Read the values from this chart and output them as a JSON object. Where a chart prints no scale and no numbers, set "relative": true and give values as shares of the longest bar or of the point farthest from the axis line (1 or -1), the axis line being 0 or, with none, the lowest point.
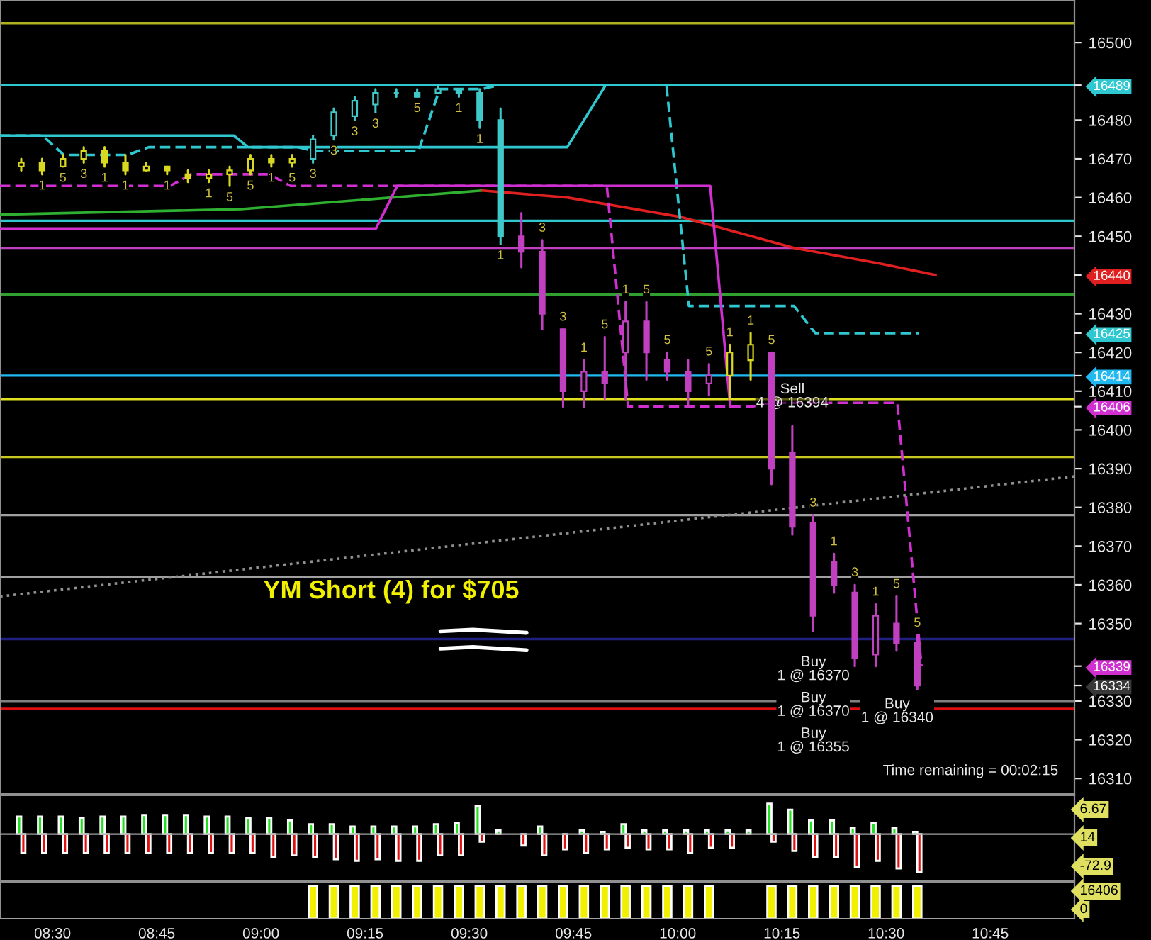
{
  "chart_data": [
    {
      "type": "candlestick",
      "tick_labels": "y",
      "x": [
        8.425,
        8.475,
        8.525,
        8.575,
        8.625,
        8.675,
        8.725,
        8.775,
        8.825,
        8.875,
        8.925,
        8.975,
        9.025,
        9.075,
        9.125,
        9.175,
        9.225,
        9.275,
        9.325,
        9.375,
        9.425,
        9.475,
        9.525,
        9.575,
        9.625,
        9.675,
        9.725,
        9.775,
        9.825,
        9.875,
        9.925,
        9.975,
        10.025,
        10.075,
        10.125,
        10.175,
        10.225,
        10.275,
        10.325,
        10.375,
        10.425,
        10.475,
        10.525,
        10.575
      ],
      "ohlc": [
        [
          16468,
          16470,
          16467,
          16469
        ],
        [
          16469,
          16470,
          16466,
          16467
        ],
        [
          16468,
          16471,
          16468,
          16470
        ],
        [
          16470,
          16473,
          16469,
          16472
        ],
        [
          16472,
          16473,
          16468,
          16469
        ],
        [
          16469,
          16471,
          16466,
          16467
        ],
        [
          16467,
          16469,
          16467,
          16468
        ],
        [
          16468,
          16468,
          16466,
          16467
        ],
        [
          16466,
          16467,
          16464,
          16465
        ],
        [
          16465,
          16467,
          16464,
          16466
        ],
        [
          16466,
          16468,
          16463,
          16467
        ],
        [
          16467,
          16471,
          16466,
          16470
        ],
        [
          16470,
          16471,
          16468,
          16469
        ],
        [
          16469,
          16471,
          16468,
          16470
        ],
        [
          16470,
          16476,
          16469,
          16475
        ],
        [
          16476,
          16483,
          16475,
          16482
        ],
        [
          16481,
          16486,
          16480,
          16485
        ],
        [
          16484,
          16488,
          16482,
          16487
        ],
        [
          16487,
          16488,
          16486,
          16487
        ],
        [
          16487,
          16488,
          16486,
          16486
        ],
        [
          16487,
          16489,
          16487,
          16488
        ],
        [
          16488,
          16488,
          16486,
          16487
        ],
        [
          16487,
          16488,
          16478,
          16480
        ],
        [
          16480,
          16483,
          16448,
          16450
        ],
        [
          16450,
          16456,
          16442,
          16446
        ],
        [
          16446,
          16449,
          16426,
          16430
        ],
        [
          16426,
          16426,
          16406,
          16410
        ],
        [
          16410,
          16418,
          16406,
          16415
        ],
        [
          16415,
          16424,
          16408,
          16412
        ],
        [
          16420,
          16433,
          16408,
          16428
        ],
        [
          16428,
          16433,
          16413,
          16420
        ],
        [
          16418,
          16420,
          16413,
          16415
        ],
        [
          16415,
          16418,
          16406,
          16410
        ],
        [
          16412,
          16417,
          16409,
          16414
        ],
        [
          16414,
          16422,
          16408,
          16420
        ],
        [
          16418,
          16425,
          16413,
          16422
        ],
        [
          16420,
          16420,
          16386,
          16390
        ],
        [
          16394,
          16401,
          16373,
          16375
        ],
        [
          16376,
          16378,
          16348,
          16352
        ],
        [
          16366,
          16368,
          16358,
          16360
        ],
        [
          16358,
          16360,
          16339,
          16341
        ],
        [
          16342,
          16355,
          16339,
          16352
        ],
        [
          16350,
          16357,
          16343,
          16345
        ],
        [
          16345,
          16347,
          16333,
          16334
        ]
      ],
      "colors": [
        "#d8d820",
        "#d8d820",
        "#d8d820",
        "#d8d820",
        "#d8d820",
        "#d8d820",
        "#d8d820",
        "#d8d820",
        "#d8d820",
        "#d8d820",
        "#d8d820",
        "#d8d820",
        "#d8d820",
        "#d8d820",
        "#40c8c8",
        "#40c8c8",
        "#40c8c8",
        "#40c8c8",
        "#40c8c8",
        "#40c8c8",
        "#40c8c8",
        "#40c8c8",
        "#40c8c8",
        "#40c8c8",
        "#c040c0",
        "#c040c0",
        "#c040c0",
        "#c040c0",
        "#c040c0",
        "#c040c0",
        "#c040c0",
        "#c040c0",
        "#c040c0",
        "#c040c0",
        "#d8d820",
        "#d8d820",
        "#c040c0",
        "#c040c0",
        "#c040c0",
        "#c040c0",
        "#c040c0",
        "#c040c0",
        "#c040c0",
        "#c040c0"
      ],
      "series": [
        {
          "type": "line",
          "color": "#30b030",
          "line_style": "solid",
          "x": [
            8.374,
            8.953,
            9.531
          ],
          "values": [
            16455.6,
            16457,
            16461.8
          ]
        },
        {
          "type": "line",
          "color": "#e02020",
          "line_style": "solid",
          "x": [
            9.531,
            9.735,
            10.007,
            10.279,
            10.483,
            10.619
          ],
          "values": [
            16461.8,
            16460,
            16455,
            16447,
            16443,
            16440
          ]
        },
        {
          "type": "line",
          "color": "#30c8d0",
          "line_style": "dashed",
          "x": [
            8.374,
            8.476,
            8.527,
            8.68,
            8.731,
            9.088,
            9.129,
            9.378,
            9.429,
            9.531,
            9.571,
            9.973,
            10.027,
            10.279,
            10.33,
            10.578
          ],
          "values": [
            16476,
            16476,
            16471,
            16471,
            16473,
            16473,
            16472,
            16472,
            16488,
            16488,
            16489,
            16489,
            16432,
            16432,
            16425,
            16425
          ]
        },
        {
          "type": "line",
          "color": "#30c8d0",
          "line_style": "solid",
          "x": [
            8.374,
            8.935,
            8.969,
            9.735,
            9.827,
            10.578
          ],
          "values": [
            16476,
            16476,
            16473,
            16473,
            16489,
            16489
          ]
        },
        {
          "type": "line",
          "color": "#d030d0",
          "line_style": "dashed",
          "x": [
            8.374,
            8.782,
            8.833,
            9.02,
            9.071,
            9.83,
            9.881,
            10.177,
            10.228,
            10.527,
            10.585
          ],
          "values": [
            16463,
            16463,
            16466,
            16466,
            16463,
            16463,
            16406,
            16406,
            16407,
            16407,
            16339
          ]
        },
        {
          "type": "line",
          "color": "#d030d0",
          "line_style": "solid",
          "x": [
            8.374,
            9.276,
            9.327,
            10.078,
            10.126
          ],
          "values": [
            16452,
            16452,
            16463,
            16463,
            16406
          ]
        },
        {
          "type": "line",
          "color": "#909090",
          "line_style": "dotted",
          "x": [
            8.374,
            10.952
          ],
          "values": [
            16357,
            16388
          ]
        }
      ],
      "xlim": [
        8.374,
        10.952
      ],
      "ylim": [
        16306,
        16511
      ],
      "yticks": [
        16310,
        16320,
        16330,
        16350,
        16360,
        16370,
        16380,
        16390,
        16400,
        16410,
        16420,
        16430,
        16450,
        16460,
        16470,
        16480,
        16500
      ],
      "y2lim": [
        16306,
        16511
      ],
      "y2ticks": [
        {
          "value": 16489,
          "label": "16489"
        },
        {
          "value": 16440,
          "label": "16440"
        },
        {
          "value": 16425,
          "label": "16425"
        },
        {
          "value": 16414,
          "label": "16414"
        },
        {
          "value": 16406,
          "label": "16406"
        },
        {
          "value": 16339,
          "label": "16339"
        },
        {
          "value": 16334,
          "label": "16334"
        }
      ],
      "ref_lines": [
        {
          "axis": "y",
          "value": 16505,
          "color": "#b0b020"
        },
        {
          "axis": "y",
          "value": 16489,
          "color": "#30c8d0"
        },
        {
          "axis": "y",
          "value": 16454,
          "color": "#30c8d0"
        },
        {
          "axis": "y",
          "value": 16447,
          "color": "#c040c0"
        },
        {
          "axis": "y",
          "value": 16435,
          "color": "#30a030"
        },
        {
          "axis": "y",
          "value": 16414,
          "color": "#20b8f0"
        },
        {
          "axis": "y",
          "value": 16408,
          "color": "#e0e020"
        },
        {
          "axis": "y",
          "value": 16393,
          "color": "#c8c820"
        },
        {
          "axis": "y",
          "value": 16378,
          "color": "#a0a0a0"
        },
        {
          "axis": "y",
          "value": 16362,
          "color": "#a0a0a0"
        },
        {
          "axis": "y",
          "value": 16346,
          "color": "#202080"
        },
        {
          "axis": "y",
          "value": 16330,
          "color": "#808080"
        },
        {
          "axis": "y",
          "value": 16328,
          "color": "#e01010"
        }
      ],
      "annotations": [
        "YM Short (4) for $705",
        "Time remaining = 00:02:15",
        "Buy\n1 @ 16370",
        "Buy\n1 @ 16370",
        "Buy\n1 @ 16355",
        "Buy\n1 @ 16340",
        {
          "text": "Sell\n4 @ 16394",
          "x": 10.275,
          "y": 16401
        },
        {
          "text": "5",
          "x": 8.525,
          "y": 16468
        },
        {
          "text": "3",
          "x": 8.575,
          "y": 16469
        },
        {
          "text": "1",
          "x": 8.475,
          "y": 16466
        },
        {
          "text": "1",
          "x": 8.625,
          "y": 16468
        },
        {
          "text": "1",
          "x": 8.675,
          "y": 16466
        },
        {
          "text": "1",
          "x": 8.775,
          "y": 16466
        },
        {
          "text": "1",
          "x": 8.875,
          "y": 16464
        },
        {
          "text": "5",
          "x": 8.925,
          "y": 16463
        },
        {
          "text": "5",
          "x": 8.975,
          "y": 16466
        },
        {
          "text": "1",
          "x": 9.025,
          "y": 16468
        },
        {
          "text": "5",
          "x": 9.075,
          "y": 16468
        },
        {
          "text": "3",
          "x": 9.125,
          "y": 16469
        },
        {
          "text": "3",
          "x": 9.175,
          "y": 16475
        },
        {
          "text": "3",
          "x": 9.225,
          "y": 16480
        },
        {
          "text": "3",
          "x": 9.275,
          "y": 16482
        },
        {
          "text": "5",
          "x": 9.375,
          "y": 16486
        },
        {
          "text": "1",
          "x": 9.475,
          "y": 16486
        },
        {
          "text": "1",
          "x": 9.525,
          "y": 16478
        },
        {
          "text": "1",
          "x": 9.575,
          "y": 16448
        },
        {
          "text": "3",
          "x": 9.675,
          "y": 16449
        },
        {
          "text": "3",
          "x": 9.725,
          "y": 16426
        },
        {
          "text": "1",
          "x": 9.775,
          "y": 16418
        },
        {
          "text": "5",
          "x": 9.825,
          "y": 16424
        },
        {
          "text": "1",
          "x": 9.875,
          "y": 16433
        },
        {
          "text": "5",
          "x": 9.925,
          "y": 16433
        },
        {
          "text": "5",
          "x": 9.975,
          "y": 16420
        },
        {
          "text": "5",
          "x": 10.075,
          "y": 16417
        },
        {
          "text": "1",
          "x": 10.125,
          "y": 16422
        },
        {
          "text": "1",
          "x": 10.175,
          "y": 16425
        },
        {
          "text": "5",
          "x": 10.225,
          "y": 16420
        },
        {
          "text": "3",
          "x": 10.325,
          "y": 16378
        },
        {
          "text": "1",
          "x": 10.375,
          "y": 16368
        },
        {
          "text": "3",
          "x": 10.425,
          "y": 16360
        },
        {
          "text": "1",
          "x": 10.475,
          "y": 16355
        },
        {
          "text": "5",
          "x": 10.525,
          "y": 16357
        },
        {
          "text": "5",
          "x": 10.575,
          "y": 16347
        }
      ]
    },
    {
      "type": "bar",
      "relative": true,
      "tick_labels": false,
      "xlim": [
        8.374,
        10.952
      ],
      "x": [
        8.425,
        8.475,
        8.525,
        8.575,
        8.625,
        8.675,
        8.725,
        8.775,
        8.825,
        8.875,
        8.925,
        8.975,
        9.025,
        9.075,
        9.125,
        9.175,
        9.225,
        9.275,
        9.325,
        9.375,
        9.425,
        9.475,
        9.525,
        9.575,
        9.625,
        9.675,
        9.725,
        9.775,
        9.825,
        9.875,
        9.925,
        9.975,
        10.025,
        10.075,
        10.125,
        10.175,
        10.225,
        10.275,
        10.325,
        10.375,
        10.425,
        10.475,
        10.525,
        10.575
      ],
      "series": [
        {
          "color": "#20e020",
          "values": [
            0.46,
            0.46,
            0.46,
            0.42,
            0.46,
            0.46,
            0.5,
            0.5,
            0.5,
            0.46,
            0.46,
            0.42,
            0.42,
            0.36,
            0.26,
            0.26,
            0.2,
            0.2,
            0.2,
            0.2,
            0.26,
            0.3,
            0.74,
            0.1,
            null,
            0.2,
            null,
            0.1,
            0.06,
            0.26,
            0.1,
            0.1,
            0.1,
            0.1,
            0.1,
            0.1,
            0.8,
            0.64,
            0.36,
            0.36,
            0.16,
            0.3,
            0.16,
            0.06
          ]
        },
        {
          "color": "#e01010",
          "values": [
            -0.5,
            -0.5,
            -0.5,
            -0.5,
            -0.5,
            -0.5,
            -0.5,
            -0.5,
            -0.5,
            -0.5,
            -0.5,
            -0.5,
            -0.6,
            -0.56,
            -0.6,
            -0.66,
            -0.7,
            -0.66,
            -0.7,
            -0.7,
            -0.56,
            -0.56,
            -0.2,
            null,
            -0.3,
            -0.56,
            -0.4,
            -0.5,
            -0.4,
            -0.36,
            -0.4,
            -0.4,
            -0.5,
            -0.36,
            -0.36,
            null,
            -0.2,
            -0.44,
            -0.6,
            -0.6,
            -0.86,
            -0.7,
            -0.9,
            -1
          ]
        }
      ],
      "annotations": [
        "6.67",
        "14",
        "-72.9"
      ]
    },
    {
      "type": "bar",
      "relative": true,
      "tick_labels": "x",
      "xlim": [
        8.374,
        10.952
      ],
      "xticks": [
        {
          "value": 8.5,
          "label": "08:30"
        },
        {
          "value": 8.75,
          "label": "08:45"
        },
        {
          "value": 9.0,
          "label": "09:00"
        },
        {
          "value": 9.25,
          "label": "09:15"
        },
        {
          "value": 9.5,
          "label": "09:30"
        },
        {
          "value": 9.75,
          "label": "09:45"
        },
        {
          "value": 10.0,
          "label": "10:00"
        },
        {
          "value": 10.25,
          "label": "10:15"
        },
        {
          "value": 10.5,
          "label": "10:30"
        },
        {
          "value": 10.75,
          "label": "10:45"
        }
      ],
      "x": [
        9.125,
        9.175,
        9.225,
        9.275,
        9.325,
        9.375,
        9.425,
        9.475,
        9.525,
        9.575,
        9.625,
        9.675,
        9.725,
        9.775,
        9.825,
        9.875,
        9.925,
        9.975,
        10.025,
        10.075,
        10.225,
        10.275,
        10.325,
        10.375,
        10.425,
        10.475,
        10.525,
        10.575
      ],
      "series": [
        {
          "color": "#f0f000",
          "values": [
            1,
            1,
            1,
            1,
            1,
            1,
            1,
            1,
            1,
            1,
            1,
            1,
            1,
            1,
            1,
            1,
            1,
            1,
            1,
            1,
            1,
            1,
            1,
            1,
            1,
            1,
            1,
            1
          ]
        }
      ],
      "annotations": [
        "16406",
        "0"
      ]
    }
  ]
}
